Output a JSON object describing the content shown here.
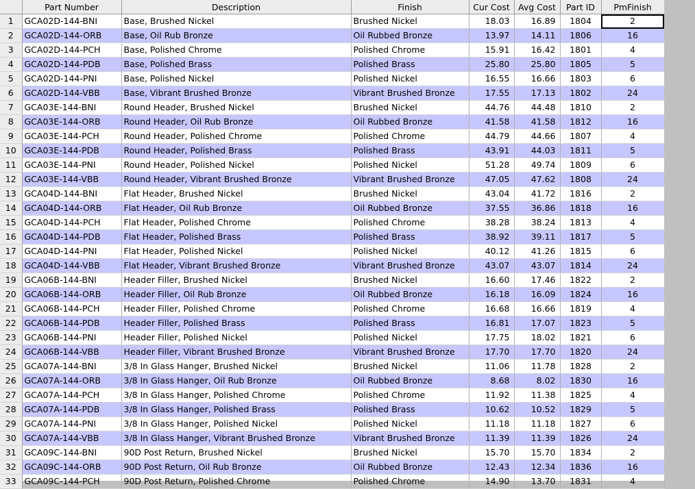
{
  "table": {
    "headers": [
      "",
      "Part Number",
      "Description",
      "Finish",
      "Cur Cost",
      "Avg Cost",
      "Part ID",
      "PmFinish"
    ],
    "rows": [
      {
        "n": "1",
        "part": "GCA02D-144-BNI",
        "desc": "Base, Brushed Nickel",
        "finish": "Brushed Nickel",
        "cur": "18.03",
        "avg": "16.89",
        "id": "1804",
        "pm": "2"
      },
      {
        "n": "2",
        "part": "GCA02D-144-ORB",
        "desc": "Base, Oil Rub Bronze",
        "finish": "Oil Rubbed Bronze",
        "cur": "13.97",
        "avg": "14.11",
        "id": "1806",
        "pm": "16"
      },
      {
        "n": "3",
        "part": "GCA02D-144-PCH",
        "desc": "Base, Polished Chrome",
        "finish": "Polished Chrome",
        "cur": "15.91",
        "avg": "16.42",
        "id": "1801",
        "pm": "4"
      },
      {
        "n": "4",
        "part": "GCA02D-144-PDB",
        "desc": "Base, Polished Brass",
        "finish": "Polished Brass",
        "cur": "25.80",
        "avg": "25.80",
        "id": "1805",
        "pm": "5"
      },
      {
        "n": "5",
        "part": "GCA02D-144-PNI",
        "desc": "Base, Polished Nickel",
        "finish": "Polished Nickel",
        "cur": "16.55",
        "avg": "16.66",
        "id": "1803",
        "pm": "6"
      },
      {
        "n": "6",
        "part": "GCA02D-144-VBB",
        "desc": "Base, Vibrant Brushed Bronze",
        "finish": "Vibrant Brushed Bronze",
        "cur": "17.55",
        "avg": "17.13",
        "id": "1802",
        "pm": "24"
      },
      {
        "n": "7",
        "part": "GCA03E-144-BNI",
        "desc": "Round Header, Brushed Nickel",
        "finish": "Brushed Nickel",
        "cur": "44.76",
        "avg": "44.48",
        "id": "1810",
        "pm": "2"
      },
      {
        "n": "8",
        "part": "GCA03E-144-ORB",
        "desc": "Round Header, Oil Rub Bronze",
        "finish": "Oil Rubbed Bronze",
        "cur": "41.58",
        "avg": "41.58",
        "id": "1812",
        "pm": "16"
      },
      {
        "n": "9",
        "part": "GCA03E-144-PCH",
        "desc": "Round Header, Polished Chrome",
        "finish": "Polished Chrome",
        "cur": "44.79",
        "avg": "44.66",
        "id": "1807",
        "pm": "4"
      },
      {
        "n": "10",
        "part": "GCA03E-144-PDB",
        "desc": "Round Header, Polished Brass",
        "finish": "Polished Brass",
        "cur": "43.91",
        "avg": "44.03",
        "id": "1811",
        "pm": "5"
      },
      {
        "n": "11",
        "part": "GCA03E-144-PNI",
        "desc": "Round Header, Polished Nickel",
        "finish": "Polished Nickel",
        "cur": "51.28",
        "avg": "49.74",
        "id": "1809",
        "pm": "6"
      },
      {
        "n": "12",
        "part": "GCA03E-144-VBB",
        "desc": "Round Header, Vibrant Brushed Bronze",
        "finish": "Vibrant Brushed Bronze",
        "cur": "47.05",
        "avg": "47.62",
        "id": "1808",
        "pm": "24"
      },
      {
        "n": "13",
        "part": "GCA04D-144-BNI",
        "desc": "Flat Header, Brushed Nickel",
        "finish": "Brushed Nickel",
        "cur": "43.04",
        "avg": "41.72",
        "id": "1816",
        "pm": "2"
      },
      {
        "n": "14",
        "part": "GCA04D-144-ORB",
        "desc": "Flat Header, Oil Rub Bronze",
        "finish": "Oil Rubbed Bronze",
        "cur": "37.55",
        "avg": "36.86",
        "id": "1818",
        "pm": "16"
      },
      {
        "n": "15",
        "part": "GCA04D-144-PCH",
        "desc": "Flat Header, Polished Chrome",
        "finish": "Polished Chrome",
        "cur": "38.28",
        "avg": "38.24",
        "id": "1813",
        "pm": "4"
      },
      {
        "n": "16",
        "part": "GCA04D-144-PDB",
        "desc": "Flat Header, Polished Brass",
        "finish": "Polished Brass",
        "cur": "38.92",
        "avg": "39.11",
        "id": "1817",
        "pm": "5"
      },
      {
        "n": "17",
        "part": "GCA04D-144-PNI",
        "desc": "Flat Header, Polished Nickel",
        "finish": "Polished Nickel",
        "cur": "40.12",
        "avg": "41.26",
        "id": "1815",
        "pm": "6"
      },
      {
        "n": "18",
        "part": "GCA04D-144-VBB",
        "desc": "Flat Header, Vibrant Brushed Bronze",
        "finish": "Vibrant Brushed Bronze",
        "cur": "43.07",
        "avg": "43.07",
        "id": "1814",
        "pm": "24"
      },
      {
        "n": "19",
        "part": "GCA06B-144-BNI",
        "desc": "Header Filler, Brushed Nickel",
        "finish": "Brushed Nickel",
        "cur": "16.60",
        "avg": "17.46",
        "id": "1822",
        "pm": "2"
      },
      {
        "n": "20",
        "part": "GCA06B-144-ORB",
        "desc": "Header Filler, Oil Rub Bronze",
        "finish": "Oil Rubbed Bronze",
        "cur": "16.18",
        "avg": "16.09",
        "id": "1824",
        "pm": "16"
      },
      {
        "n": "21",
        "part": "GCA06B-144-PCH",
        "desc": "Header Filler, Polished Chrome",
        "finish": "Polished Chrome",
        "cur": "16.68",
        "avg": "16.66",
        "id": "1819",
        "pm": "4"
      },
      {
        "n": "22",
        "part": "GCA06B-144-PDB",
        "desc": "Header Filler, Polished Brass",
        "finish": "Polished Brass",
        "cur": "16.81",
        "avg": "17.07",
        "id": "1823",
        "pm": "5"
      },
      {
        "n": "23",
        "part": "GCA06B-144-PNI",
        "desc": "Header Filler, Polished Nickel",
        "finish": "Polished Nickel",
        "cur": "17.75",
        "avg": "18.02",
        "id": "1821",
        "pm": "6"
      },
      {
        "n": "24",
        "part": "GCA06B-144-VBB",
        "desc": "Header Filler, Vibrant Brushed Bronze",
        "finish": "Vibrant Brushed Bronze",
        "cur": "17.70",
        "avg": "17.70",
        "id": "1820",
        "pm": "24"
      },
      {
        "n": "25",
        "part": "GCA07A-144-BNI",
        "desc": "3/8 In Glass Hanger, Brushed Nickel",
        "finish": "Brushed Nickel",
        "cur": "11.06",
        "avg": "11.78",
        "id": "1828",
        "pm": "2"
      },
      {
        "n": "26",
        "part": "GCA07A-144-ORB",
        "desc": "3/8 In Glass Hanger, Oil Rub Bronze",
        "finish": "Oil Rubbed Bronze",
        "cur": "8.68",
        "avg": "8.02",
        "id": "1830",
        "pm": "16"
      },
      {
        "n": "27",
        "part": "GCA07A-144-PCH",
        "desc": "3/8 In Glass Hanger, Polished Chrome",
        "finish": "Polished Chrome",
        "cur": "11.92",
        "avg": "11.38",
        "id": "1825",
        "pm": "4"
      },
      {
        "n": "28",
        "part": "GCA07A-144-PDB",
        "desc": "3/8 In Glass Hanger, Polished Brass",
        "finish": "Polished Brass",
        "cur": "10.62",
        "avg": "10.52",
        "id": "1829",
        "pm": "5"
      },
      {
        "n": "29",
        "part": "GCA07A-144-PNI",
        "desc": "3/8 In Glass Hanger, Polished Nickel",
        "finish": "Polished Nickel",
        "cur": "11.18",
        "avg": "11.18",
        "id": "1827",
        "pm": "6"
      },
      {
        "n": "30",
        "part": "GCA07A-144-VBB",
        "desc": "3/8 In Glass Hanger, Vibrant Brushed Bronze",
        "finish": "Vibrant Brushed Bronze",
        "cur": "11.39",
        "avg": "11.39",
        "id": "1826",
        "pm": "24"
      },
      {
        "n": "31",
        "part": "GCA09C-144-BNI",
        "desc": "90D Post Return, Brushed Nickel",
        "finish": "Brushed Nickel",
        "cur": "15.70",
        "avg": "15.70",
        "id": "1834",
        "pm": "2"
      },
      {
        "n": "32",
        "part": "GCA09C-144-ORB",
        "desc": "90D Post Return, Oil Rub Bronze",
        "finish": "Oil Rubbed Bronze",
        "cur": "12.43",
        "avg": "12.34",
        "id": "1836",
        "pm": "16"
      },
      {
        "n": "33",
        "part": "GCA09C-144-PCH",
        "desc": "90D Post Return, Polished Chrome",
        "finish": "Polished Chrome",
        "cur": "14.90",
        "avg": "13.70",
        "id": "1831",
        "pm": "4"
      }
    ]
  },
  "colors": {
    "alt_row": "#c7c7ff",
    "header": "#ececec",
    "background": "#c0c0c0"
  }
}
